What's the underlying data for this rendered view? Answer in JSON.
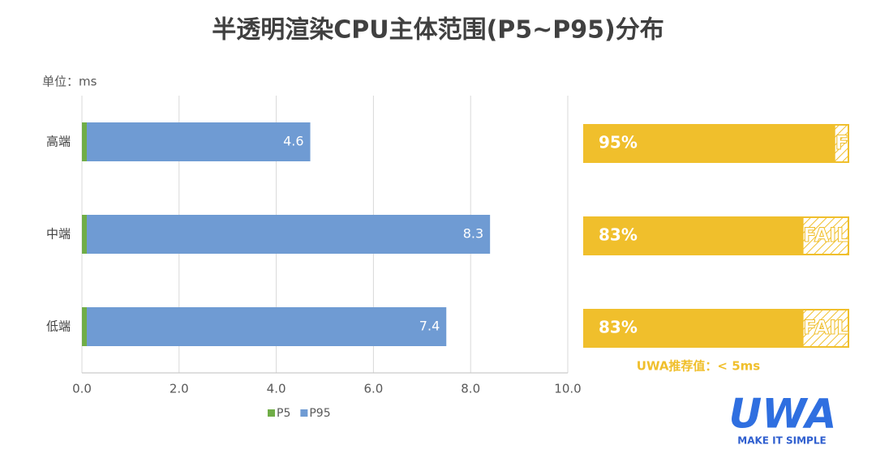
{
  "chart_data": {
    "type": "bar",
    "orientation": "horizontal",
    "stacked": true,
    "title": "半透明渲染CPU主体范围(P5~P95)分布",
    "unit_label": "单位：ms",
    "categories": [
      "高端",
      "中端",
      "低端"
    ],
    "series": [
      {
        "name": "P5",
        "color": "#70ad47",
        "values": [
          0.1,
          0.1,
          0.1
        ]
      },
      {
        "name": "P95",
        "color": "#6f9bd3",
        "values": [
          4.6,
          8.3,
          7.4
        ]
      }
    ],
    "xlim": [
      0,
      10
    ],
    "xticks": [
      {
        "value": 0,
        "label": "0.0"
      },
      {
        "value": 2,
        "label": "2.0"
      },
      {
        "value": 4,
        "label": "4.0"
      },
      {
        "value": 6,
        "label": "6.0"
      },
      {
        "value": 8,
        "label": "8.0"
      },
      {
        "value": 10,
        "label": "10.0"
      }
    ],
    "grid": true
  },
  "pass_panel": {
    "color": "#f0bf2c",
    "values": [
      95,
      83,
      83
    ],
    "value_labels": [
      "95%",
      "83%",
      "83%"
    ],
    "fail_labels": [
      "F",
      "FAIL",
      "FAIL"
    ],
    "note": "UWA推荐值：< 5ms"
  },
  "logo": {
    "name": "UWA",
    "slogan": "MAKE IT SIMPLE"
  }
}
